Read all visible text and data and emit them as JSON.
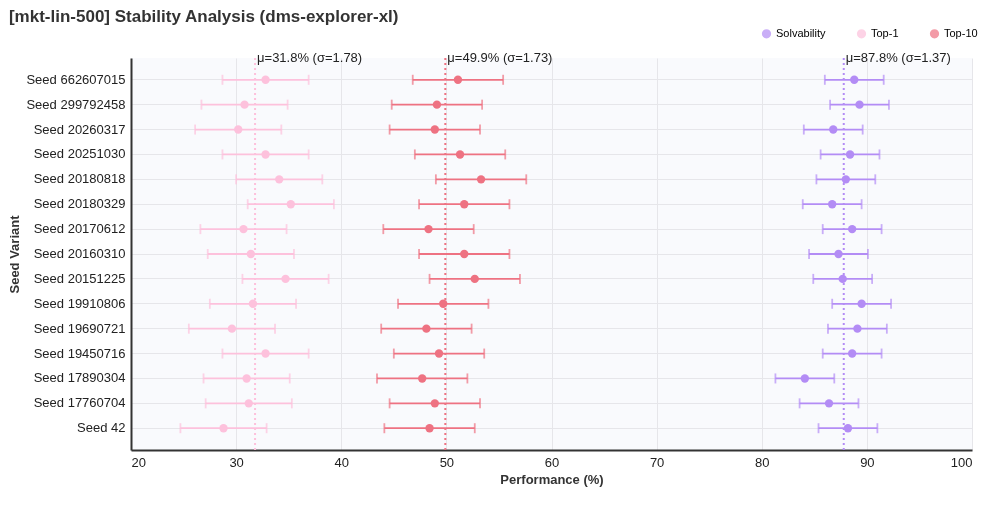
{
  "chart_data": {
    "type": "scatter",
    "orientation": "horizontal",
    "title": "[mkt-lin-500] Stability Analysis (dms-explorer-xl)",
    "xlabel": "Performance (%)",
    "ylabel": "Seed Variant",
    "categories": [
      "Seed 662607015",
      "Seed 299792458",
      "Seed 20260317",
      "Seed 20251030",
      "Seed 20180818",
      "Seed 20180329",
      "Seed 20170612",
      "Seed 20160310",
      "Seed 20151225",
      "Seed 19910806",
      "Seed 19690721",
      "Seed 19450716",
      "Seed 17890304",
      "Seed 17760704",
      "Seed 42"
    ],
    "series": [
      {
        "name": "Solvability",
        "color": "#b38cf5",
        "values": [
          88.8,
          89.3,
          86.8,
          88.4,
          88.0,
          86.7,
          88.6,
          87.3,
          87.7,
          89.5,
          89.1,
          88.6,
          84.1,
          86.4,
          88.2
        ],
        "errors": [
          2.8,
          2.8,
          2.8,
          2.8,
          2.8,
          2.8,
          2.8,
          2.8,
          2.8,
          2.8,
          2.8,
          2.8,
          2.8,
          2.8,
          2.8
        ]
      },
      {
        "name": "Top-1",
        "color": "#fdc1dc",
        "values": [
          32.8,
          30.8,
          30.2,
          32.8,
          34.1,
          35.2,
          30.7,
          31.4,
          34.7,
          31.6,
          29.6,
          32.8,
          31.0,
          31.2,
          28.8
        ],
        "errors": [
          4.1,
          4.1,
          4.1,
          4.1,
          4.1,
          4.1,
          4.1,
          4.1,
          4.1,
          4.1,
          4.1,
          4.1,
          4.1,
          4.1,
          4.1
        ]
      },
      {
        "name": "Top-10",
        "color": "#ee7282",
        "values": [
          51.1,
          49.1,
          48.9,
          51.3,
          53.3,
          51.7,
          48.3,
          51.7,
          52.7,
          49.7,
          48.1,
          49.3,
          47.7,
          48.9,
          48.4
        ],
        "errors": [
          4.3,
          4.3,
          4.3,
          4.3,
          4.3,
          4.3,
          4.3,
          4.3,
          4.3,
          4.3,
          4.3,
          4.3,
          4.3,
          4.3,
          4.3
        ]
      }
    ],
    "xlim": [
      20,
      100
    ],
    "xticks": [
      20,
      30,
      40,
      50,
      60,
      70,
      80,
      90,
      100
    ],
    "ref_lines": [
      {
        "axis": "x",
        "value": 31.8,
        "label": "μ=31.8% (σ=1.78)",
        "color": "#fdc1dc",
        "line_style": "dotted"
      },
      {
        "axis": "x",
        "value": 49.9,
        "label": "μ=49.9% (σ=1.73)",
        "color": "#ee7282",
        "line_style": "dotted"
      },
      {
        "axis": "x",
        "value": 87.8,
        "label": "μ=87.8% (σ=1.37)",
        "color": "#b38cf5",
        "line_style": "dotted"
      }
    ],
    "grid": true,
    "legend": "top right",
    "marker": "circle"
  }
}
